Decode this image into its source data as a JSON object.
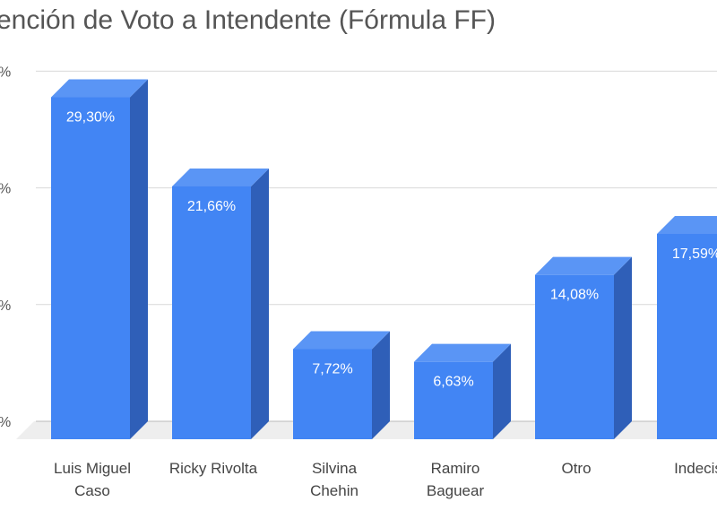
{
  "chart_data": {
    "type": "bar",
    "title": "ención de Voto a Intendente (Fórmula FF)",
    "categories": [
      [
        "Luis Miguel",
        "Caso"
      ],
      [
        "Ricky Rivolta"
      ],
      [
        "Silvina",
        "Chehin"
      ],
      [
        "Ramiro",
        "Baguear"
      ],
      [
        "Otro"
      ],
      [
        "Indecis"
      ]
    ],
    "values": [
      29.3,
      21.66,
      7.72,
      6.63,
      14.08,
      17.59
    ],
    "data_labels": [
      "29,30%",
      "21,66%",
      "7,72%",
      "6,63%",
      "14,08%",
      "17,59%"
    ],
    "ylim": [
      0,
      30
    ],
    "yticks": [
      0,
      10,
      20,
      30
    ],
    "ytick_labels": [
      "%",
      "%",
      "%",
      "%"
    ],
    "grid": true,
    "colors": {
      "front": "#4285f4",
      "top": "#5a95f5",
      "side": "#2f5fb8",
      "floor": "#eeeeee",
      "grid": "#d9d9d9"
    }
  }
}
